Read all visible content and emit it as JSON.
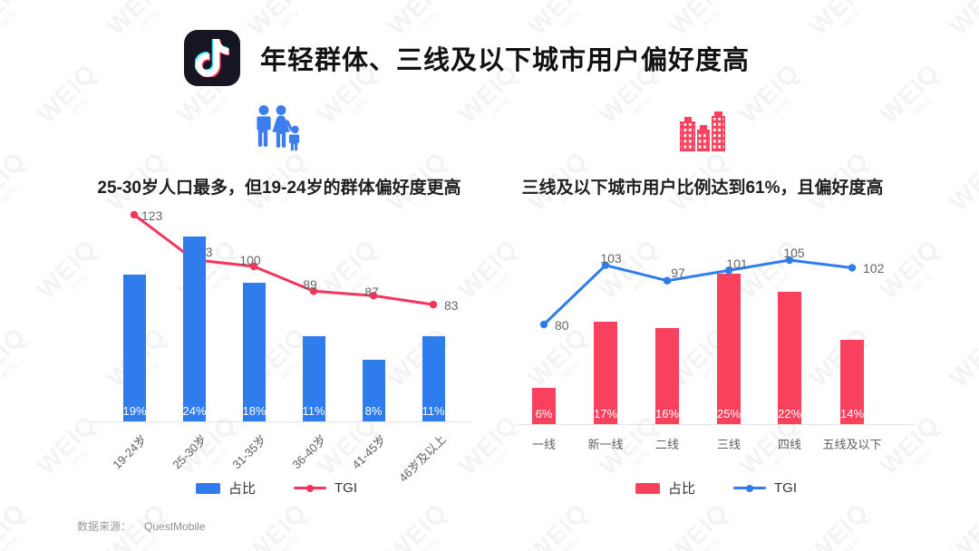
{
  "page": {
    "title": "年轻群体、三线及以下城市用户偏好度高",
    "watermark": "WEIQ",
    "footer": {
      "source_label": "数据来源：",
      "source_value": "QuestMobile"
    }
  },
  "colors": {
    "bar_blue": "#2F7CEC",
    "line_red": "#F5365C",
    "bar_pink": "#F8425D",
    "line_blue": "#2F7CEC",
    "tiktok_bg": "#161623",
    "tiktok_cyan": "#25F4EE",
    "tiktok_red": "#FE2C55",
    "family_icon_blue": "#3C7EF0",
    "city_icon_pink": "#F8425D"
  },
  "chart_data": [
    {
      "type": "bar+line",
      "title": "25-30岁人口最多，但19-24岁的群体偏好度更高",
      "categories": [
        "19-24岁",
        "25-30岁",
        "31-35岁",
        "36-40岁",
        "41-45岁",
        "46岁及以上"
      ],
      "series": [
        {
          "name": "占比",
          "type": "bar",
          "unit": "%",
          "values": [
            19,
            24,
            18,
            11,
            8,
            11
          ],
          "color": "#2F7CEC"
        },
        {
          "name": "TGI",
          "type": "line",
          "values": [
            123,
            103,
            100,
            89,
            87,
            83
          ],
          "color": "#F5365C"
        }
      ],
      "legend_position": "bottom",
      "grid": false,
      "xlabel": "",
      "ylabel": ""
    },
    {
      "type": "bar+line",
      "title": "三线及以下城市用户比例达到61%，且偏好度高",
      "categories": [
        "一线",
        "新一线",
        "二线",
        "三线",
        "四线",
        "五线及以下"
      ],
      "series": [
        {
          "name": "占比",
          "type": "bar",
          "unit": "%",
          "values": [
            6,
            17,
            16,
            25,
            22,
            14
          ],
          "color": "#F8425D"
        },
        {
          "name": "TGI",
          "type": "line",
          "values": [
            80,
            103,
            97,
            101,
            105,
            102
          ],
          "color": "#2F7CEC"
        }
      ],
      "legend_position": "bottom",
      "grid": false,
      "xlabel": "",
      "ylabel": ""
    }
  ]
}
